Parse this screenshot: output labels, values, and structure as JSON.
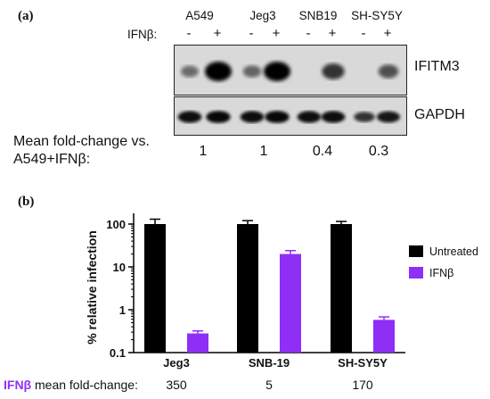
{
  "panel_a": {
    "label": "(a)",
    "cell_lines": [
      {
        "name": "A549",
        "fold": "1"
      },
      {
        "name": "Jeg3",
        "fold": "1"
      },
      {
        "name": "SNB19",
        "fold": "0.4"
      },
      {
        "name": "SH-SY5Y",
        "fold": "0.3"
      }
    ],
    "treatment_label": "IFNβ:",
    "lane_signs": [
      "-",
      "+",
      "-",
      "+",
      "-",
      "+",
      "-",
      "+"
    ],
    "blot_labels": {
      "top": "IFITM3",
      "bottom": "GAPDH"
    },
    "fold_caption_line1": "Mean fold-change vs.",
    "fold_caption_line2": "A549+IFNβ:",
    "band_intensity": {
      "IFITM3": [
        0.25,
        1.0,
        0.3,
        1.0,
        0.0,
        0.65,
        0.0,
        0.45
      ],
      "GAPDH": [
        0.9,
        0.95,
        0.9,
        0.95,
        0.9,
        0.9,
        0.65,
        0.85
      ]
    }
  },
  "panel_b": {
    "label": "(b)",
    "footer_ifn": "IFNβ",
    "footer_rest": " mean fold-change:",
    "footer_values": [
      "350",
      "5",
      "170"
    ],
    "colors": {
      "untreated": "#000000",
      "ifn": "#8f2ff5",
      "accent_text": "#8f2ff5",
      "error": "#cc2244"
    }
  },
  "chart_data": {
    "type": "bar",
    "categories": [
      "Jeg3",
      "SNB-19",
      "SH-SY5Y"
    ],
    "series": [
      {
        "name": "Untreated",
        "values": [
          100,
          100,
          100
        ],
        "error_upper": [
          130,
          120,
          115
        ]
      },
      {
        "name": "IFNβ",
        "values": [
          0.28,
          20,
          0.58
        ],
        "error_upper": [
          0.32,
          24,
          0.68
        ]
      }
    ],
    "ylabel": "% relative infection",
    "xlabel": "",
    "yscale": "log",
    "ylim": [
      0.1,
      200
    ],
    "yticks": [
      0.1,
      1,
      10,
      100
    ],
    "ytick_labels": [
      "0.1",
      "1",
      "10",
      "100"
    ],
    "legend_position": "right",
    "grid": false
  }
}
